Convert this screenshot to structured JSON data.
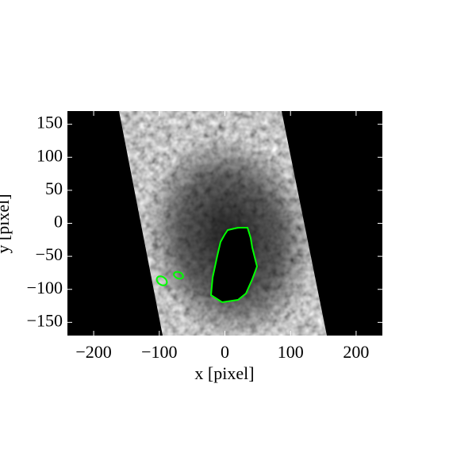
{
  "chart_data": {
    "type": "image",
    "x_label": "x [pixel]",
    "y_label": "y [pixel]",
    "xlim": [
      -240,
      240
    ],
    "ylim": [
      -170,
      170
    ],
    "xticks": [
      {
        "value": -200,
        "label": "−200"
      },
      {
        "value": -100,
        "label": "−100"
      },
      0,
      100,
      200
    ],
    "yticks": [
      {
        "value": -150,
        "label": "−150"
      },
      {
        "value": -100,
        "label": "−100"
      },
      {
        "value": -50,
        "label": "−50"
      },
      0,
      50,
      100,
      150
    ],
    "contour_color": "#00ff00"
  }
}
